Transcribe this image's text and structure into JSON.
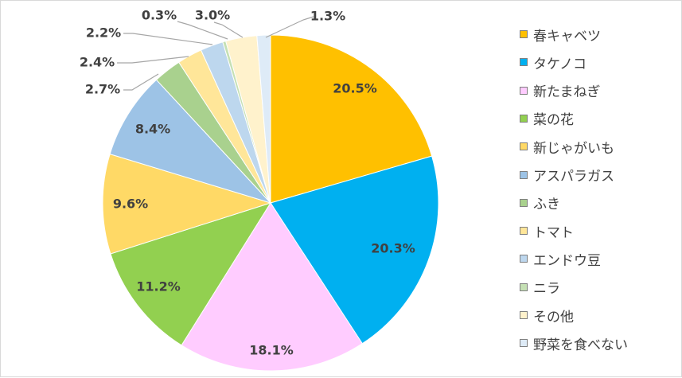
{
  "chart_data": {
    "type": "pie",
    "title": "",
    "categories": [
      "春キャベツ",
      "タケノコ",
      "新たまねぎ",
      "菜の花",
      "新じゃがいも",
      "アスパラガス",
      "ふき",
      "トマト",
      "エンドウ豆",
      "ニラ",
      "その他",
      "野菜を食べない"
    ],
    "values": [
      20.5,
      20.3,
      18.1,
      11.2,
      9.6,
      8.4,
      2.7,
      2.4,
      2.2,
      0.3,
      3.0,
      1.3
    ],
    "labels": [
      "20.5%",
      "20.3%",
      "18.1%",
      "11.2%",
      "9.6%",
      "8.4%",
      "2.7%",
      "2.4%",
      "2.2%",
      "0.3%",
      "3.0%",
      "1.3%"
    ],
    "colors": [
      "#ffc000",
      "#00b0f0",
      "#ffccff",
      "#92d050",
      "#ffd966",
      "#9dc3e6",
      "#a9d18e",
      "#ffe699",
      "#bdd7ee",
      "#c5e0b4",
      "#fff2cc",
      "#deebf7"
    ],
    "legend": "right",
    "units": "%"
  }
}
